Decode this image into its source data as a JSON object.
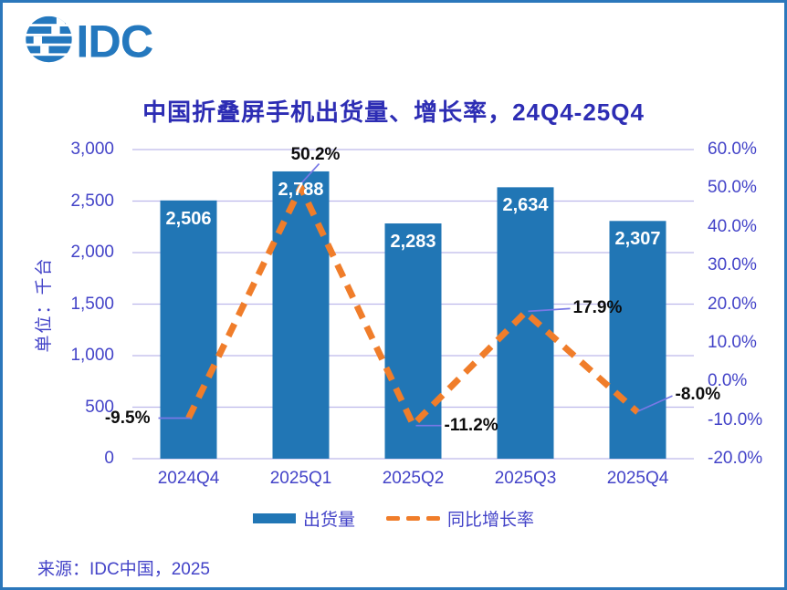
{
  "logo": {
    "text": "IDC"
  },
  "title": "中国折叠屏手机出货量、增长率，24Q4-25Q4",
  "source": "来源：IDC中国，2025",
  "legend": {
    "bars": "出货量",
    "line": "同比增长率"
  },
  "colors": {
    "bar_blue": "#2176B5",
    "line_orange": "#F07D2A",
    "axis_text": "#4343C8",
    "title_text": "#2D2DB4",
    "gridline": "#BDB9EB",
    "leader_line": "#7878E6",
    "border_blue": "#2B77BB",
    "logo_blue": "#2478BE",
    "bar_value_white": "#FFFFFF",
    "growth_label_black": "#0D0D0D"
  },
  "chart_data": {
    "type": "bar",
    "title": "中国折叠屏手机出货量、增长率，24Q4-25Q4",
    "categories": [
      "2024Q4",
      "2025Q1",
      "2025Q2",
      "2025Q3",
      "2025Q4"
    ],
    "series": [
      {
        "name": "出货量",
        "type": "bar",
        "axis": "left",
        "values": [
          2506,
          2788,
          2283,
          2634,
          2307
        ],
        "labels": [
          "2,506",
          "2,788",
          "2,283",
          "2,634",
          "2,307"
        ],
        "color": "#2176B5"
      },
      {
        "name": "同比增长率",
        "type": "line",
        "style": "dashed",
        "axis": "right",
        "values": [
          -9.5,
          50.2,
          -11.2,
          17.9,
          -8.0
        ],
        "labels": [
          "-9.5%",
          "50.2%",
          "-11.2%",
          "17.9%",
          "-8.0%"
        ],
        "color": "#F07D2A"
      }
    ],
    "left_axis": {
      "label": "单位：千台",
      "min": 0,
      "max": 3000,
      "ticks": [
        "0",
        "500",
        "1,000",
        "1,500",
        "2,000",
        "2,500",
        "3,000"
      ]
    },
    "right_axis": {
      "min": -20,
      "max": 60,
      "ticks": [
        "-20.0%",
        "-10.0%",
        "0.0%",
        "10.0%",
        "20.0%",
        "30.0%",
        "40.0%",
        "50.0%",
        "60.0%"
      ]
    },
    "grid": true,
    "legend_position": "bottom"
  }
}
